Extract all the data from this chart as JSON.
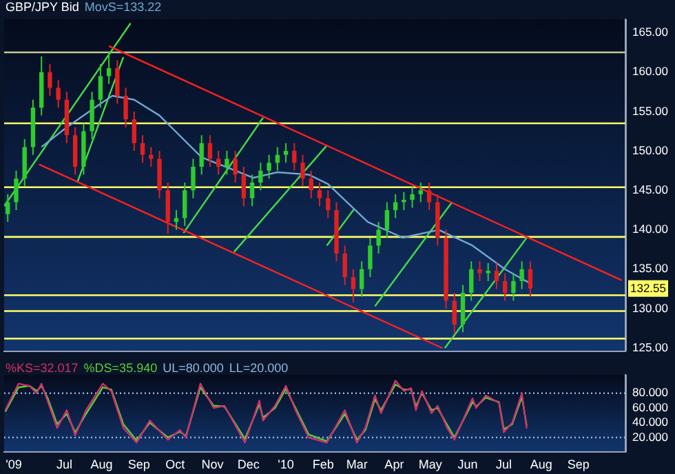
{
  "chart_data": [
    {
      "type": "candlestick",
      "title": "GBP/JPY Bid",
      "legend": "top left",
      "tick_labels": "y",
      "grid": false,
      "x": [
        "2009-05-15",
        "2009-05-22",
        "2009-05-29",
        "2009-06-05",
        "2009-06-12",
        "2009-06-19",
        "2009-06-26",
        "2009-07-03",
        "2009-07-10",
        "2009-07-17",
        "2009-07-24",
        "2009-07-31",
        "2009-08-07",
        "2009-08-14",
        "2009-08-21",
        "2009-08-28",
        "2009-09-04",
        "2009-09-11",
        "2009-09-18",
        "2009-09-25",
        "2009-10-02",
        "2009-10-09",
        "2009-10-16",
        "2009-10-23",
        "2009-10-30",
        "2009-11-06",
        "2009-11-13",
        "2009-11-20",
        "2009-11-27",
        "2009-12-04",
        "2009-12-11",
        "2009-12-18",
        "2009-12-25",
        "2010-01-01",
        "2010-01-08",
        "2010-01-15",
        "2010-01-22",
        "2010-01-29",
        "2010-02-05",
        "2010-02-12",
        "2010-02-19",
        "2010-02-26",
        "2010-03-05",
        "2010-03-12",
        "2010-03-19",
        "2010-03-26",
        "2010-04-02",
        "2010-04-09",
        "2010-04-16",
        "2010-04-23",
        "2010-04-30",
        "2010-05-07",
        "2010-05-14",
        "2010-05-21",
        "2010-05-28",
        "2010-06-04",
        "2010-06-11",
        "2010-06-18",
        "2010-06-25",
        "2010-07-02",
        "2010-07-09",
        "2010-07-16",
        "2010-07-23"
      ],
      "ohlc": [
        [
          142,
          144.5,
          141,
          143.5
        ],
        [
          143.5,
          147.5,
          142.5,
          146.5
        ],
        [
          146.5,
          151.5,
          145.5,
          150.5
        ],
        [
          150.5,
          156.5,
          149.5,
          155.5
        ],
        [
          155.5,
          162,
          154.5,
          160
        ],
        [
          160,
          161,
          157,
          158
        ],
        [
          158,
          159,
          155.5,
          156.5
        ],
        [
          156.5,
          157.5,
          151,
          152
        ],
        [
          152,
          153,
          147,
          148
        ],
        [
          148,
          153.5,
          147,
          152.5
        ],
        [
          152.5,
          157.5,
          151.5,
          156.5
        ],
        [
          156.5,
          161,
          155.5,
          159.5
        ],
        [
          159.5,
          162.5,
          158.5,
          160.5
        ],
        [
          160.5,
          161.5,
          156,
          157
        ],
        [
          157,
          158,
          153,
          154
        ],
        [
          154,
          155,
          150,
          151
        ],
        [
          151,
          152,
          148.5,
          149.5
        ],
        [
          149.5,
          150.5,
          148,
          149
        ],
        [
          149,
          150,
          144,
          145
        ],
        [
          145,
          146,
          139.5,
          141
        ],
        [
          141,
          142.5,
          140,
          141.5
        ],
        [
          141.5,
          146,
          140.5,
          145
        ],
        [
          145,
          149,
          144,
          148
        ],
        [
          148,
          152,
          147,
          151
        ],
        [
          151,
          152,
          148,
          149
        ],
        [
          149,
          150,
          147,
          148
        ],
        [
          148,
          150,
          147,
          149
        ],
        [
          149,
          150,
          146,
          147
        ],
        [
          147,
          148,
          143,
          144
        ],
        [
          144,
          147,
          143,
          146
        ],
        [
          146,
          148.5,
          145,
          147.5
        ],
        [
          147.5,
          149.5,
          146.5,
          148.5
        ],
        [
          148.5,
          150.5,
          147.5,
          149.5
        ],
        [
          149.5,
          151,
          148.5,
          150
        ],
        [
          150,
          151,
          147.5,
          148.5
        ],
        [
          148.5,
          149.5,
          145.5,
          146.5
        ],
        [
          146.5,
          147.5,
          144,
          145
        ],
        [
          145,
          146,
          143,
          144
        ],
        [
          144,
          145,
          141.5,
          142.5
        ],
        [
          142.5,
          143.5,
          136,
          137
        ],
        [
          137,
          138,
          133,
          134
        ],
        [
          134,
          135,
          130.8,
          132.5
        ],
        [
          132.5,
          136,
          131.5,
          135
        ],
        [
          135,
          139,
          134,
          138
        ],
        [
          138,
          141,
          137,
          140
        ],
        [
          140,
          143.5,
          139,
          142.5
        ],
        [
          142.5,
          144.5,
          141.5,
          143.5
        ],
        [
          143.5,
          144.8,
          142.5,
          143.8
        ],
        [
          143.8,
          145.5,
          142.8,
          144.5
        ],
        [
          144.5,
          146,
          143.5,
          145
        ],
        [
          145,
          146,
          142.5,
          143.5
        ],
        [
          143.5,
          144.5,
          138,
          139
        ],
        [
          139,
          140,
          130,
          131
        ],
        [
          131,
          132,
          126.8,
          128
        ],
        [
          128,
          133,
          127,
          132
        ],
        [
          132,
          136,
          131,
          135
        ],
        [
          135,
          136,
          133.5,
          134.5
        ],
        [
          134.5,
          135.8,
          133.5,
          134.8
        ],
        [
          134.8,
          135.8,
          132.5,
          133.5
        ],
        [
          133.5,
          134.5,
          131,
          132
        ],
        [
          132,
          134.5,
          131,
          133.5
        ],
        [
          133.5,
          136,
          132.5,
          135
        ],
        [
          135,
          136,
          131.5,
          132.55
        ]
      ],
      "colors": [
        "#2ecc2e",
        "#2ecc2e",
        "#2ecc2e",
        "#2ecc2e",
        "#2ecc2e",
        "#e02020",
        "#e02020",
        "#e02020",
        "#e02020",
        "#2ecc2e",
        "#2ecc2e",
        "#2ecc2e",
        "#2ecc2e",
        "#e02020",
        "#e02020",
        "#e02020",
        "#e02020",
        "#e02020",
        "#e02020",
        "#e02020",
        "#2ecc2e",
        "#2ecc2e",
        "#2ecc2e",
        "#2ecc2e",
        "#e02020",
        "#e02020",
        "#2ecc2e",
        "#e02020",
        "#e02020",
        "#2ecc2e",
        "#2ecc2e",
        "#2ecc2e",
        "#2ecc2e",
        "#2ecc2e",
        "#e02020",
        "#e02020",
        "#e02020",
        "#e02020",
        "#e02020",
        "#e02020",
        "#e02020",
        "#e02020",
        "#2ecc2e",
        "#2ecc2e",
        "#2ecc2e",
        "#2ecc2e",
        "#2ecc2e",
        "#2ecc2e",
        "#2ecc2e",
        "#2ecc2e",
        "#e02020",
        "#e02020",
        "#e02020",
        "#e02020",
        "#2ecc2e",
        "#2ecc2e",
        "#e02020",
        "#2ecc2e",
        "#e02020",
        "#e02020",
        "#2ecc2e",
        "#2ecc2e",
        "#e02020"
      ],
      "series": [
        {
          "type": "line",
          "name": "MovS=133.22",
          "color": "#6fa8d0",
          "x": [
            "2009-06-12",
            "2009-07-03",
            "2009-07-31",
            "2009-08-10",
            "2009-08-28",
            "2009-09-18",
            "2009-10-23",
            "2009-11-20",
            "2009-12-05",
            "2009-12-25",
            "2010-01-20",
            "2010-02-05",
            "2010-03-10",
            "2010-04-08",
            "2010-05-08",
            "2010-06-05",
            "2010-07-02",
            "2010-07-23"
          ],
          "values": [
            150.5,
            153,
            156,
            157,
            156.5,
            154.5,
            149.2,
            147.5,
            146.6,
            147.3,
            147,
            145.8,
            141,
            139,
            140,
            138,
            135,
            133.2
          ]
        },
        {
          "type": "line",
          "color": "#ff2020",
          "x": [
            "2009-08-07",
            "2010-10-07"
          ],
          "values": [
            163.3,
            133.6
          ]
        },
        {
          "type": "line",
          "color": "#ff2020",
          "x": [
            "2009-06-10",
            "2010-05-11"
          ],
          "values": [
            148.3,
            125
          ]
        },
        {
          "type": "line",
          "color": "#44dd44",
          "x": [
            "2009-05-12",
            "2009-08-25"
          ],
          "values": [
            143,
            166.2
          ]
        },
        {
          "type": "line",
          "color": "#44dd44",
          "x": [
            "2009-07-12",
            "2009-08-19"
          ],
          "values": [
            146.1,
            161.9
          ]
        },
        {
          "type": "line",
          "color": "#44dd44",
          "x": [
            "2009-10-08",
            "2009-12-13"
          ],
          "values": [
            139.6,
            154.2
          ]
        },
        {
          "type": "line",
          "color": "#44dd44",
          "x": [
            "2009-11-19",
            "2010-02-04"
          ],
          "values": [
            137.2,
            150.7
          ]
        },
        {
          "type": "line",
          "color": "#44dd44",
          "x": [
            "2010-02-04",
            "2010-02-27"
          ],
          "values": [
            138,
            142.7
          ]
        },
        {
          "type": "line",
          "color": "#44dd44",
          "x": [
            "2010-03-16",
            "2010-05-19"
          ],
          "values": [
            130.3,
            143.5
          ]
        },
        {
          "type": "line",
          "color": "#44dd44",
          "x": [
            "2010-05-13",
            "2010-07-21"
          ],
          "values": [
            125,
            139.2
          ]
        }
      ],
      "ref_lines": [
        {
          "axis": "y",
          "value": 162.5,
          "color": "#c8c890"
        },
        {
          "axis": "y",
          "value": 153.5,
          "color": "#ffff66"
        },
        {
          "axis": "y",
          "value": 145.4,
          "color": "#ffff66"
        },
        {
          "axis": "y",
          "value": 139.1,
          "color": "#ffff66"
        },
        {
          "axis": "y",
          "value": 131.7,
          "color": "#ffff66"
        },
        {
          "axis": "y",
          "value": 129.7,
          "color": "#ffff66"
        },
        {
          "axis": "y",
          "value": 126.2,
          "color": "#ffff66"
        }
      ],
      "annotations": [
        "132.55"
      ],
      "xlim": [
        "2009-05-12",
        "2010-10-10"
      ],
      "ylim": [
        124.6,
        166.7
      ],
      "yticks": [
        {
          "value": 125,
          "label": "125.00"
        },
        {
          "value": 130,
          "label": "130.00"
        },
        {
          "value": 135,
          "label": "135.00"
        },
        {
          "value": 140,
          "label": "140.00"
        },
        {
          "value": 145,
          "label": "145.00"
        },
        {
          "value": 150,
          "label": "150.00"
        },
        {
          "value": 155,
          "label": "155.00"
        },
        {
          "value": 160,
          "label": "160.00"
        },
        {
          "value": 165,
          "label": "165.00"
        }
      ]
    },
    {
      "type": "line",
      "legend": "top left",
      "grid": false,
      "marker": "none",
      "series": [
        {
          "name": "%KS=32.017",
          "color": "#d0306a",
          "x": [
            "2009-05-13",
            "2009-05-24",
            "2009-06-02",
            "2009-06-08",
            "2009-06-12",
            "2009-06-17",
            "2009-06-25",
            "2009-07-03",
            "2009-07-10",
            "2009-07-19",
            "2009-08-02",
            "2009-08-09",
            "2009-08-19",
            "2009-08-30",
            "2009-09-10",
            "2009-09-25",
            "2009-10-05",
            "2009-10-10",
            "2009-10-22",
            "2009-11-02",
            "2009-11-11",
            "2009-11-28",
            "2009-12-10",
            "2009-12-13",
            "2009-12-23",
            "2010-01-01",
            "2010-01-09",
            "2010-01-20",
            "2010-02-04",
            "2010-02-19",
            "2010-03-01",
            "2010-03-08",
            "2010-03-16",
            "2010-03-21",
            "2010-04-02",
            "2010-04-09",
            "2010-04-15",
            "2010-04-19",
            "2010-04-24",
            "2010-05-02",
            "2010-05-07",
            "2010-05-15",
            "2010-05-21",
            "2010-06-05",
            "2010-06-08",
            "2010-06-16",
            "2010-06-27",
            "2010-07-01",
            "2010-07-08",
            "2010-07-16",
            "2010-07-20"
          ],
          "values": [
            57,
            93,
            90,
            80,
            93,
            70,
            33,
            57,
            23,
            57,
            93,
            83,
            33,
            13,
            43,
            17,
            30,
            20,
            93,
            60,
            63,
            13,
            70,
            43,
            63,
            90,
            57,
            20,
            13,
            57,
            13,
            33,
            77,
            53,
            97,
            83,
            87,
            57,
            83,
            53,
            63,
            33,
            17,
            73,
            60,
            77,
            67,
            27,
            40,
            80,
            32
          ]
        },
        {
          "name": "%DS=35.940",
          "color": "#5ccc3c",
          "x": [
            "2009-05-13",
            "2009-05-24",
            "2009-06-02",
            "2009-06-08",
            "2009-06-12",
            "2009-06-17",
            "2009-06-25",
            "2009-07-03",
            "2009-07-10",
            "2009-07-19",
            "2009-08-02",
            "2009-08-09",
            "2009-08-19",
            "2009-08-30",
            "2009-09-10",
            "2009-09-25",
            "2009-10-05",
            "2009-10-10",
            "2009-10-22",
            "2009-11-02",
            "2009-11-11",
            "2009-11-28",
            "2009-12-10",
            "2009-12-13",
            "2009-12-23",
            "2010-01-01",
            "2010-01-09",
            "2010-01-20",
            "2010-02-04",
            "2010-02-19",
            "2010-03-01",
            "2010-03-08",
            "2010-03-16",
            "2010-03-21",
            "2010-04-02",
            "2010-04-09",
            "2010-04-15",
            "2010-04-19",
            "2010-04-24",
            "2010-05-02",
            "2010-05-07",
            "2010-05-15",
            "2010-05-21",
            "2010-06-05",
            "2010-06-08",
            "2010-06-16",
            "2010-06-27",
            "2010-07-01",
            "2010-07-08",
            "2010-07-16",
            "2010-07-20"
          ],
          "values": [
            55,
            88,
            90,
            83,
            90,
            74,
            38,
            52,
            27,
            52,
            88,
            85,
            38,
            16,
            40,
            20,
            28,
            22,
            88,
            63,
            62,
            18,
            65,
            47,
            60,
            86,
            60,
            24,
            15,
            52,
            17,
            30,
            72,
            57,
            92,
            85,
            85,
            62,
            80,
            57,
            60,
            37,
            20,
            68,
            62,
            74,
            68,
            31,
            38,
            75,
            36
          ]
        }
      ],
      "ref_lines": [
        {
          "axis": "y",
          "value": 80,
          "label": "UL=80.000",
          "color": "#8fb8e0",
          "line_style": "dotted"
        },
        {
          "axis": "y",
          "value": 20,
          "label": "LL=20.000",
          "color": "#8fb8e0",
          "line_style": "dotted"
        }
      ],
      "xlim": [
        "2009-05-12",
        "2010-10-10"
      ],
      "ylim": [
        0,
        105
      ],
      "xticks": [
        {
          "value": "2009-05-20",
          "label": "'09"
        },
        {
          "value": "2009-07-01",
          "label": "Jul"
        },
        {
          "value": "2009-08-01",
          "label": "Aug"
        },
        {
          "value": "2009-09-01",
          "label": "Sep"
        },
        {
          "value": "2009-10-01",
          "label": "Oct"
        },
        {
          "value": "2009-11-01",
          "label": "Nov"
        },
        {
          "value": "2009-12-01",
          "label": "Dec"
        },
        {
          "value": "2010-01-01",
          "label": "'10"
        },
        {
          "value": "2010-02-01",
          "label": "Feb"
        },
        {
          "value": "2010-03-01",
          "label": "Mar"
        },
        {
          "value": "2010-04-01",
          "label": "Apr"
        },
        {
          "value": "2010-05-01",
          "label": "May"
        },
        {
          "value": "2010-06-01",
          "label": "Jun"
        },
        {
          "value": "2010-07-01",
          "label": "Jul"
        },
        {
          "value": "2010-08-01",
          "label": "Aug"
        },
        {
          "value": "2010-09-01",
          "label": "Sep"
        }
      ],
      "yticks": [
        {
          "value": 20,
          "label": "20.000"
        },
        {
          "value": 40,
          "label": "40.000"
        },
        {
          "value": 60,
          "label": "60.000"
        },
        {
          "value": 80,
          "label": "80.000"
        }
      ]
    }
  ]
}
